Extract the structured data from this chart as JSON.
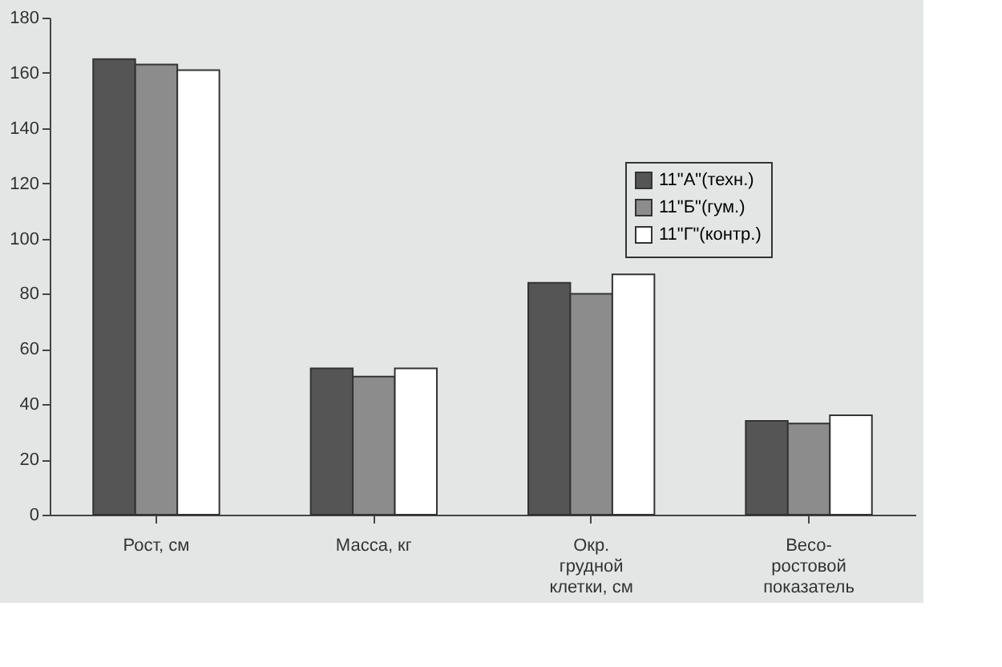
{
  "chart_data": {
    "type": "bar",
    "categories": [
      "Рост, см",
      "Масса, кг",
      "Окр.\nгрудной\nклетки, см",
      "Весо-\nростовой\nпоказатель"
    ],
    "series": [
      {
        "name": "11\"А\"(техн.)",
        "color": "#555555",
        "values": [
          165,
          53,
          84,
          34
        ]
      },
      {
        "name": "11\"Б\"(гум.)",
        "color": "#8c8c8c",
        "values": [
          163,
          50,
          80,
          33
        ]
      },
      {
        "name": "11\"Г\"(контр.)",
        "color": "#ffffff",
        "values": [
          161,
          53,
          87,
          36
        ]
      }
    ],
    "ylim": [
      0,
      180
    ],
    "yticks": [
      0,
      20,
      40,
      60,
      80,
      100,
      120,
      140,
      160,
      180
    ],
    "grid": false,
    "legend": "top right"
  }
}
